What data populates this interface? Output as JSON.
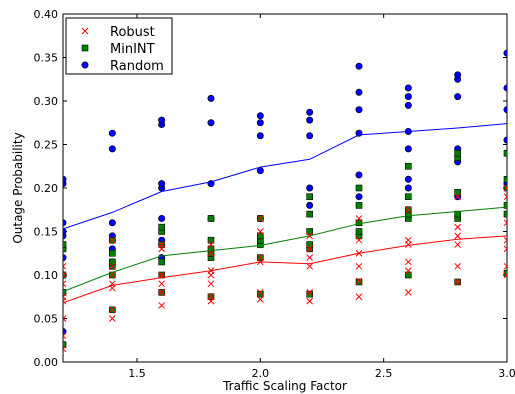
{
  "chart_data": {
    "type": "scatter",
    "title": "",
    "xlabel": "Traffic Scaling Factor",
    "ylabel": "Outage Probability",
    "xlim": [
      1.2,
      3.0
    ],
    "ylim": [
      0.0,
      0.4
    ],
    "xticks": [
      1.5,
      2.0,
      2.5,
      3.0
    ],
    "xtick_labels": [
      "1.5",
      "2.0",
      "2.5",
      "3.0"
    ],
    "yticks": [
      0.0,
      0.05,
      0.1,
      0.15,
      0.2,
      0.25,
      0.3,
      0.35,
      0.4
    ],
    "ytick_labels": [
      "0.00",
      "0.05",
      "0.10",
      "0.15",
      "0.20",
      "0.25",
      "0.30",
      "0.35",
      "0.40"
    ],
    "grid": false,
    "legend_position": "top-left",
    "series": [
      {
        "name": "Robust",
        "marker": "x",
        "color": "#ff0000",
        "mean_x": [
          1.2,
          1.4,
          1.6,
          1.8,
          2.0,
          2.2,
          2.4,
          2.6,
          2.8,
          3.0
        ],
        "mean_y": [
          0.068,
          0.088,
          0.097,
          0.105,
          0.115,
          0.113,
          0.125,
          0.134,
          0.141,
          0.145
        ],
        "points": [
          [
            1.2,
            0.03
          ],
          [
            1.2,
            0.05
          ],
          [
            1.2,
            0.07
          ],
          [
            1.2,
            0.075
          ],
          [
            1.2,
            0.09
          ],
          [
            1.2,
            0.1
          ],
          [
            1.2,
            0.11
          ],
          [
            1.2,
            0.015
          ],
          [
            1.4,
            0.05
          ],
          [
            1.4,
            0.06
          ],
          [
            1.4,
            0.085
          ],
          [
            1.4,
            0.09
          ],
          [
            1.4,
            0.1
          ],
          [
            1.4,
            0.11
          ],
          [
            1.4,
            0.14
          ],
          [
            1.6,
            0.065
          ],
          [
            1.6,
            0.08
          ],
          [
            1.6,
            0.09
          ],
          [
            1.6,
            0.1
          ],
          [
            1.6,
            0.13
          ],
          [
            1.6,
            0.135
          ],
          [
            1.8,
            0.07
          ],
          [
            1.8,
            0.075
          ],
          [
            1.8,
            0.09
          ],
          [
            1.8,
            0.1
          ],
          [
            1.8,
            0.105
          ],
          [
            1.8,
            0.125
          ],
          [
            1.8,
            0.135
          ],
          [
            2.0,
            0.072
          ],
          [
            2.0,
            0.08
          ],
          [
            2.0,
            0.115
          ],
          [
            2.0,
            0.12
          ],
          [
            2.0,
            0.15
          ],
          [
            2.0,
            0.165
          ],
          [
            2.2,
            0.07
          ],
          [
            2.2,
            0.08
          ],
          [
            2.2,
            0.11
          ],
          [
            2.2,
            0.12
          ],
          [
            2.2,
            0.13
          ],
          [
            2.2,
            0.145
          ],
          [
            2.4,
            0.075
          ],
          [
            2.4,
            0.093
          ],
          [
            2.4,
            0.11
          ],
          [
            2.4,
            0.125
          ],
          [
            2.4,
            0.14
          ],
          [
            2.4,
            0.165
          ],
          [
            2.6,
            0.08
          ],
          [
            2.6,
            0.105
          ],
          [
            2.6,
            0.115
          ],
          [
            2.6,
            0.135
          ],
          [
            2.6,
            0.14
          ],
          [
            2.6,
            0.175
          ],
          [
            2.8,
            0.092
          ],
          [
            2.8,
            0.11
          ],
          [
            2.8,
            0.135
          ],
          [
            2.8,
            0.145
          ],
          [
            2.8,
            0.155
          ],
          [
            2.8,
            0.19
          ],
          [
            3.0,
            0.1
          ],
          [
            3.0,
            0.11
          ],
          [
            3.0,
            0.13
          ],
          [
            3.0,
            0.14
          ],
          [
            3.0,
            0.16
          ],
          [
            3.0,
            0.19
          ],
          [
            3.0,
            0.2
          ]
        ]
      },
      {
        "name": "MinINT",
        "marker": "square",
        "color": "#008000",
        "mean_x": [
          1.2,
          1.4,
          1.6,
          1.8,
          2.0,
          2.2,
          2.4,
          2.6,
          2.8,
          3.0
        ],
        "mean_y": [
          0.081,
          0.103,
          0.122,
          0.128,
          0.134,
          0.145,
          0.159,
          0.168,
          0.173,
          0.178
        ],
        "points": [
          [
            1.2,
            0.02
          ],
          [
            1.2,
            0.08
          ],
          [
            1.2,
            0.1
          ],
          [
            1.2,
            0.13
          ],
          [
            1.2,
            0.135
          ],
          [
            1.4,
            0.06
          ],
          [
            1.4,
            0.1
          ],
          [
            1.4,
            0.11
          ],
          [
            1.4,
            0.115
          ],
          [
            1.4,
            0.125
          ],
          [
            1.4,
            0.14
          ],
          [
            1.6,
            0.08
          ],
          [
            1.6,
            0.1
          ],
          [
            1.6,
            0.115
          ],
          [
            1.6,
            0.135
          ],
          [
            1.6,
            0.15
          ],
          [
            1.6,
            0.155
          ],
          [
            1.8,
            0.075
          ],
          [
            1.8,
            0.12
          ],
          [
            1.8,
            0.125
          ],
          [
            1.8,
            0.13
          ],
          [
            1.8,
            0.14
          ],
          [
            1.8,
            0.165
          ],
          [
            2.0,
            0.078
          ],
          [
            2.0,
            0.12
          ],
          [
            2.0,
            0.135
          ],
          [
            2.0,
            0.14
          ],
          [
            2.0,
            0.145
          ],
          [
            2.0,
            0.165
          ],
          [
            2.2,
            0.078
          ],
          [
            2.2,
            0.13
          ],
          [
            2.2,
            0.135
          ],
          [
            2.2,
            0.15
          ],
          [
            2.2,
            0.17
          ],
          [
            2.2,
            0.19
          ],
          [
            2.4,
            0.092
          ],
          [
            2.4,
            0.145
          ],
          [
            2.4,
            0.15
          ],
          [
            2.4,
            0.16
          ],
          [
            2.4,
            0.18
          ],
          [
            2.4,
            0.2
          ],
          [
            2.6,
            0.1
          ],
          [
            2.6,
            0.165
          ],
          [
            2.6,
            0.17
          ],
          [
            2.6,
            0.175
          ],
          [
            2.6,
            0.19
          ],
          [
            2.6,
            0.225
          ],
          [
            2.8,
            0.092
          ],
          [
            2.8,
            0.165
          ],
          [
            2.8,
            0.17
          ],
          [
            2.8,
            0.195
          ],
          [
            2.8,
            0.235
          ],
          [
            2.8,
            0.24
          ],
          [
            3.0,
            0.102
          ],
          [
            3.0,
            0.17
          ],
          [
            3.0,
            0.18
          ],
          [
            3.0,
            0.2
          ],
          [
            3.0,
            0.21
          ],
          [
            3.0,
            0.24
          ]
        ]
      },
      {
        "name": "Random",
        "marker": "circle",
        "color": "#0000ff",
        "mean_x": [
          1.2,
          1.4,
          1.6,
          1.8,
          2.0,
          2.2,
          2.4,
          2.6,
          2.8,
          3.0
        ],
        "mean_y": [
          0.153,
          0.172,
          0.196,
          0.207,
          0.224,
          0.233,
          0.261,
          0.265,
          0.269,
          0.274
        ],
        "points": [
          [
            1.2,
            0.035
          ],
          [
            1.2,
            0.1
          ],
          [
            1.2,
            0.12
          ],
          [
            1.2,
            0.13
          ],
          [
            1.2,
            0.145
          ],
          [
            1.2,
            0.15
          ],
          [
            1.2,
            0.16
          ],
          [
            1.2,
            0.205
          ],
          [
            1.2,
            0.21
          ],
          [
            1.4,
            0.115
          ],
          [
            1.4,
            0.13
          ],
          [
            1.4,
            0.14
          ],
          [
            1.4,
            0.145
          ],
          [
            1.4,
            0.16
          ],
          [
            1.4,
            0.245
          ],
          [
            1.4,
            0.263
          ],
          [
            1.6,
            0.12
          ],
          [
            1.6,
            0.135
          ],
          [
            1.6,
            0.14
          ],
          [
            1.6,
            0.165
          ],
          [
            1.6,
            0.2
          ],
          [
            1.6,
            0.205
          ],
          [
            1.6,
            0.273
          ],
          [
            1.6,
            0.278
          ],
          [
            1.8,
            0.165
          ],
          [
            1.8,
            0.205
          ],
          [
            1.8,
            0.275
          ],
          [
            1.8,
            0.303
          ],
          [
            2.0,
            0.165
          ],
          [
            2.0,
            0.22
          ],
          [
            2.0,
            0.26
          ],
          [
            2.0,
            0.275
          ],
          [
            2.0,
            0.283
          ],
          [
            2.2,
            0.18
          ],
          [
            2.2,
            0.2
          ],
          [
            2.2,
            0.26
          ],
          [
            2.2,
            0.278
          ],
          [
            2.2,
            0.287
          ],
          [
            2.4,
            0.19
          ],
          [
            2.4,
            0.215
          ],
          [
            2.4,
            0.263
          ],
          [
            2.4,
            0.29
          ],
          [
            2.4,
            0.31
          ],
          [
            2.4,
            0.34
          ],
          [
            2.6,
            0.2
          ],
          [
            2.6,
            0.21
          ],
          [
            2.6,
            0.245
          ],
          [
            2.6,
            0.265
          ],
          [
            2.6,
            0.295
          ],
          [
            2.6,
            0.305
          ],
          [
            2.6,
            0.315
          ],
          [
            2.8,
            0.19
          ],
          [
            2.8,
            0.23
          ],
          [
            2.8,
            0.245
          ],
          [
            2.8,
            0.305
          ],
          [
            2.8,
            0.325
          ],
          [
            2.8,
            0.33
          ],
          [
            3.0,
            0.205
          ],
          [
            3.0,
            0.255
          ],
          [
            3.0,
            0.29
          ],
          [
            3.0,
            0.315
          ],
          [
            3.0,
            0.355
          ]
        ]
      }
    ]
  }
}
